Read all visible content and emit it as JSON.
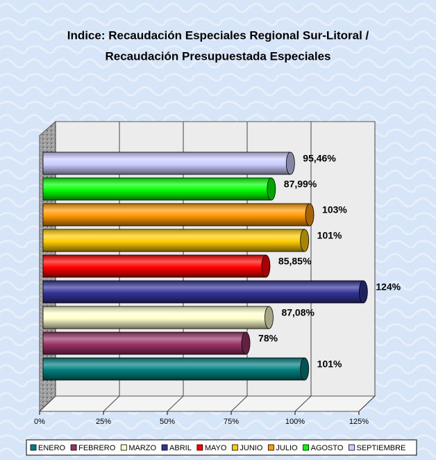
{
  "chart_data": {
    "type": "bar",
    "orientation": "horizontal",
    "title": [
      "Indice: Recaudación Especiales Regional Sur-Litoral /",
      "Recaudación Presupuestada Especiales"
    ],
    "categories": [
      "ENERO",
      "FEBRERO",
      "MARZO",
      "ABRIL",
      "MAYO",
      "JUNIO",
      "JULIO",
      "AGOSTO",
      "SEPTIEMBRE"
    ],
    "values": [
      101,
      78,
      87.08,
      124,
      85.85,
      101,
      103,
      87.99,
      95.46
    ],
    "value_labels": [
      "101%",
      "78%",
      "87,08%",
      "124%",
      "85,85%",
      "101%",
      "103%",
      "87,99%",
      "95,46%"
    ],
    "colors": [
      "#008080",
      "#993366",
      "#ffffcc",
      "#333399",
      "#ff0000",
      "#ffcc00",
      "#ff9900",
      "#00ff00",
      "#ccccff"
    ],
    "xlim": [
      0,
      125
    ],
    "xticks": [
      {
        "value": 0,
        "label": "0%"
      },
      {
        "value": 25,
        "label": "25%"
      },
      {
        "value": 50,
        "label": "50%"
      },
      {
        "value": 75,
        "label": "75%"
      },
      {
        "value": 100,
        "label": "100%"
      },
      {
        "value": 125,
        "label": "125%"
      }
    ],
    "grid": true,
    "legend": "bottom"
  }
}
